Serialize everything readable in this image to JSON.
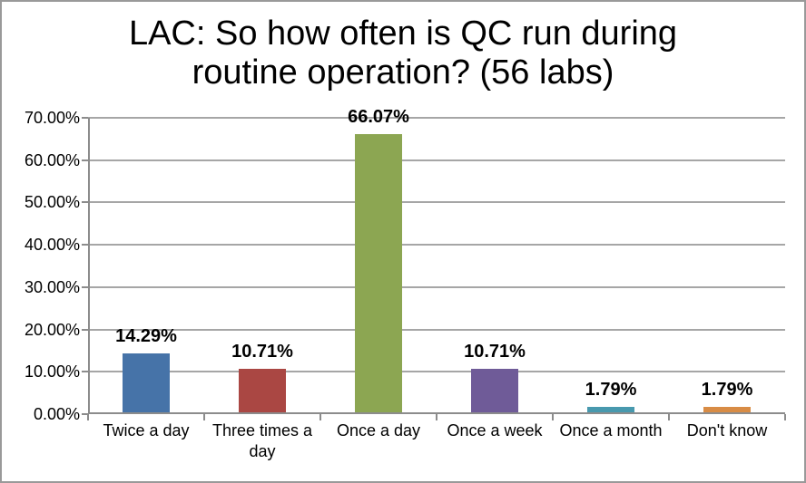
{
  "window": {
    "background": "#FFFFFF",
    "border_color": "#999999"
  },
  "chart_data": {
    "type": "bar",
    "title": "LAC: So how often is QC run during routine operation? (56 labs)",
    "categories": [
      "Twice a day",
      "Three times a day",
      "Once a day",
      "Once a week",
      "Once a month",
      "Don't know"
    ],
    "values": [
      14.29,
      10.71,
      66.07,
      10.71,
      1.79,
      1.79
    ],
    "data_labels": [
      "14.29%",
      "10.71%",
      "66.07%",
      "10.71%",
      "1.79%",
      "1.79%"
    ],
    "bar_colors": [
      "#4673A8",
      "#AA4743",
      "#8CA652",
      "#6F5B98",
      "#4899AE",
      "#D88C45"
    ],
    "xlabel": "",
    "ylabel": "",
    "ylim": [
      0,
      70
    ],
    "y_ticks": [
      "0.00%",
      "10.00%",
      "20.00%",
      "30.00%",
      "40.00%",
      "50.00%",
      "60.00%",
      "70.00%"
    ],
    "y_tick_step": 10,
    "grid": true,
    "legend": "none",
    "colors": {
      "gridline": "#A6A6A6",
      "axis": "#8C8C8C",
      "text": "#000000"
    }
  }
}
